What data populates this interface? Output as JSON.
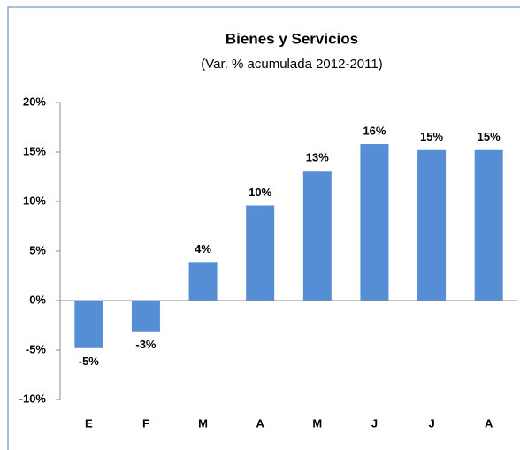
{
  "chart_data": {
    "type": "bar",
    "title": "Bienes y Servicios",
    "subtitle": "(Var. %  acumulada 2012-2011)",
    "categories": [
      "E",
      "F",
      "M",
      "A",
      "M",
      "J",
      "J",
      "A"
    ],
    "values": [
      -4.8,
      -3.1,
      3.9,
      9.6,
      13.1,
      15.8,
      15.2,
      15.2
    ],
    "value_labels": [
      "-5%",
      "-3%",
      "4%",
      "10%",
      "13%",
      "16%",
      "15%",
      "15%"
    ],
    "color": "#558ed5",
    "ylim": [
      -10,
      20
    ],
    "yticks": [
      {
        "value": -10,
        "label": "-10%"
      },
      {
        "value": -5,
        "label": "-5%"
      },
      {
        "value": 0,
        "label": "0%"
      },
      {
        "value": 5,
        "label": "5%"
      },
      {
        "value": 10,
        "label": "10%"
      },
      {
        "value": 15,
        "label": "15%"
      },
      {
        "value": 20,
        "label": "20%"
      }
    ],
    "grid": false
  }
}
